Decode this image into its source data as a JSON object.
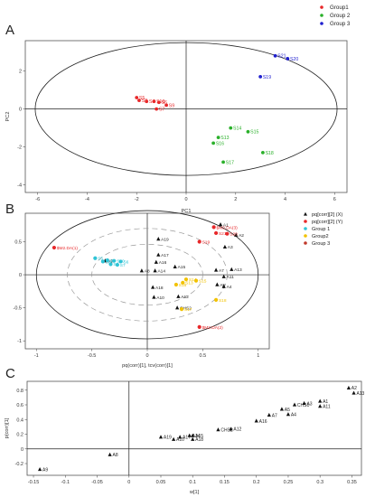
{
  "chart_data": [
    {
      "panel": "A",
      "type": "scatter",
      "title": "",
      "xlabel": "PC1",
      "ylabel": "PC2",
      "xlim": [
        -6.5,
        6.5
      ],
      "ylim": [
        -4.4,
        3.6
      ],
      "x_ticks": [
        -6,
        -4,
        -2,
        0,
        2,
        4,
        6
      ],
      "y_ticks": [
        -4,
        -2,
        0,
        2
      ],
      "legend_position": "top-right",
      "ellipse": {
        "center": [
          0,
          0
        ],
        "rx": 6.1,
        "ry": 3.5
      },
      "series": [
        {
          "name": "Group1",
          "color": "#e8282a",
          "points": [
            {
              "x": -2.0,
              "y": 0.6,
              "label": "S5"
            },
            {
              "x": -1.9,
              "y": 0.45,
              "label": "S8"
            },
            {
              "x": -1.6,
              "y": 0.4,
              "label": "S4"
            },
            {
              "x": -1.3,
              "y": 0.4,
              "label": "S10"
            },
            {
              "x": -1.1,
              "y": 0.35,
              "label": "S6"
            },
            {
              "x": -0.8,
              "y": 0.2,
              "label": "S9"
            },
            {
              "x": -1.2,
              "y": 0.0,
              "label": "S7"
            }
          ]
        },
        {
          "name": "Group 2",
          "color": "#2ab02a",
          "points": [
            {
              "x": 1.8,
              "y": -1.0,
              "label": "S14"
            },
            {
              "x": 2.5,
              "y": -1.2,
              "label": "S15"
            },
            {
              "x": 1.3,
              "y": -1.5,
              "label": "S13"
            },
            {
              "x": 1.1,
              "y": -1.8,
              "label": "S16"
            },
            {
              "x": 3.1,
              "y": -2.3,
              "label": "S18"
            },
            {
              "x": 1.5,
              "y": -2.8,
              "label": "S17"
            }
          ]
        },
        {
          "name": "Group 3",
          "color": "#1f1fcf",
          "points": [
            {
              "x": 3.6,
              "y": 2.8,
              "label": "S21"
            },
            {
              "x": 4.1,
              "y": 2.65,
              "label": "S20"
            },
            {
              "x": 3.0,
              "y": 1.7,
              "label": "S19"
            }
          ]
        }
      ]
    },
    {
      "panel": "B",
      "type": "scatter",
      "title": "",
      "xlabel": "pq(corr)[1], tcv(corr)[1]",
      "ylabel": "",
      "xlim": [
        -1.1,
        1.1
      ],
      "ylim": [
        -1.12,
        0.93
      ],
      "x_ticks": [
        -1,
        -0.5,
        0,
        0.5,
        1
      ],
      "y_ticks": [
        -1,
        -0.5,
        0,
        0.5
      ],
      "legend_position": "right",
      "legend": [
        {
          "label": "pq[corr][2] (X)",
          "color": "#111111"
        },
        {
          "label": "pq[corr][2] (Y)",
          "color": "#e8282a"
        },
        {
          "label": "Group 1",
          "color": "#2fc4d6"
        },
        {
          "label": "Group2",
          "color": "#f2c200"
        },
        {
          "label": "Group 3",
          "color": "#c0392b"
        }
      ],
      "ellipses": [
        {
          "center": [
            0,
            0
          ],
          "rx": 1.0,
          "ry": 0.97
        },
        {
          "center": [
            0,
            0
          ],
          "rx": 0.72,
          "ry": 0.7
        },
        {
          "center": [
            0,
            0
          ],
          "rx": 0.5,
          "ry": 0.46
        }
      ],
      "series": [
        {
          "name": "pq[corr][2] (X)",
          "color": "#111111",
          "points": [
            {
              "x": 0.66,
              "y": 0.76,
              "label": "A1"
            },
            {
              "x": 0.8,
              "y": 0.6,
              "label": "A2"
            },
            {
              "x": 0.7,
              "y": 0.42,
              "label": "A3"
            },
            {
              "x": 0.62,
              "y": 0.07,
              "label": "A7"
            },
            {
              "x": 0.69,
              "y": -0.03,
              "label": "A11"
            },
            {
              "x": 0.76,
              "y": 0.08,
              "label": "A13"
            },
            {
              "x": 0.63,
              "y": -0.15,
              "label": "A5"
            },
            {
              "x": 0.69,
              "y": -0.18,
              "label": "A4"
            },
            {
              "x": 0.1,
              "y": 0.54,
              "label": "A19"
            },
            {
              "x": 0.1,
              "y": 0.3,
              "label": "A17"
            },
            {
              "x": 0.08,
              "y": 0.19,
              "label": "A16"
            },
            {
              "x": 0.25,
              "y": 0.12,
              "label": "A15"
            },
            {
              "x": 0.07,
              "y": 0.06,
              "label": "A14"
            },
            {
              "x": 0.05,
              "y": -0.19,
              "label": "A18"
            },
            {
              "x": 0.28,
              "y": -0.33,
              "label": "A12"
            },
            {
              "x": 0.06,
              "y": -0.34,
              "label": "A10"
            },
            {
              "x": -0.05,
              "y": 0.06,
              "label": "A8"
            },
            {
              "x": -0.38,
              "y": 0.21,
              "label": "A9"
            },
            {
              "x": 0.27,
              "y": -0.5,
              "label": "CHS2"
            }
          ]
        },
        {
          "name": "pq[corr][2] (Y)",
          "color": "#e8282a",
          "points": [
            {
              "x": -0.84,
              "y": 0.41,
              "label": "$M2.DA(1)"
            },
            {
              "x": 0.6,
              "y": 0.72,
              "label": "$M2.DA(3)"
            },
            {
              "x": 0.62,
              "y": 0.63,
              "label": "S21"
            },
            {
              "x": 0.72,
              "y": 0.62,
              "label": "S20"
            },
            {
              "x": 0.47,
              "y": 0.5,
              "label": "S19"
            },
            {
              "x": 0.47,
              "y": -0.79,
              "label": "$M2.DA(2)"
            }
          ]
        },
        {
          "name": "Group 1",
          "color": "#2fc4d6",
          "points": [
            {
              "x": -0.47,
              "y": 0.25,
              "label": "S5"
            },
            {
              "x": -0.4,
              "y": 0.2,
              "label": "S8"
            },
            {
              "x": -0.36,
              "y": 0.22,
              "label": "S4"
            },
            {
              "x": -0.3,
              "y": 0.21,
              "label": "S10"
            },
            {
              "x": -0.24,
              "y": 0.2,
              "label": "S6"
            },
            {
              "x": -0.33,
              "y": 0.16,
              "label": "S9"
            },
            {
              "x": -0.27,
              "y": 0.15,
              "label": "S7"
            }
          ]
        },
        {
          "name": "Group2",
          "color": "#f2c200",
          "points": [
            {
              "x": 0.35,
              "y": -0.07,
              "label": "S14"
            },
            {
              "x": 0.44,
              "y": -0.09,
              "label": "S15"
            },
            {
              "x": 0.32,
              "y": -0.12,
              "label": "S13"
            },
            {
              "x": 0.26,
              "y": -0.15,
              "label": "S16"
            },
            {
              "x": 0.62,
              "y": -0.38,
              "label": "S18"
            },
            {
              "x": 0.31,
              "y": -0.52,
              "label": "S17"
            }
          ]
        }
      ]
    },
    {
      "panel": "C",
      "type": "scatter",
      "title": "",
      "xlabel": "w[1]",
      "ylabel": "p(corr)[1]",
      "xlim": [
        -0.16,
        0.365
      ],
      "ylim": [
        -0.36,
        0.92
      ],
      "x_ticks": [
        -0.15,
        -0.1,
        -0.05,
        0,
        0.05,
        0.1,
        0.15,
        0.2,
        0.25,
        0.3,
        0.35
      ],
      "y_ticks": [
        -0.2,
        0,
        0.2,
        0.4,
        0.6,
        0.8
      ],
      "legend_position": "none",
      "series": [
        {
          "name": "",
          "color": "#111111",
          "points": [
            {
              "x": -0.14,
              "y": -0.28,
              "label": "A9"
            },
            {
              "x": -0.03,
              "y": -0.08,
              "label": "A8"
            },
            {
              "x": 0.05,
              "y": 0.16,
              "label": "A19"
            },
            {
              "x": 0.07,
              "y": 0.13,
              "label": "A10"
            },
            {
              "x": 0.08,
              "y": 0.16,
              "label": "A17"
            },
            {
              "x": 0.095,
              "y": 0.18,
              "label": "A14"
            },
            {
              "x": 0.1,
              "y": 0.18,
              "label": "A15"
            },
            {
              "x": 0.1,
              "y": 0.13,
              "label": "A18"
            },
            {
              "x": 0.14,
              "y": 0.26,
              "label": "CHS2"
            },
            {
              "x": 0.16,
              "y": 0.27,
              "label": "A12"
            },
            {
              "x": 0.2,
              "y": 0.38,
              "label": "A16"
            },
            {
              "x": 0.22,
              "y": 0.46,
              "label": "A7"
            },
            {
              "x": 0.24,
              "y": 0.54,
              "label": "A5"
            },
            {
              "x": 0.25,
              "y": 0.47,
              "label": "A4"
            },
            {
              "x": 0.26,
              "y": 0.6,
              "label": "CHS1"
            },
            {
              "x": 0.275,
              "y": 0.62,
              "label": "A3"
            },
            {
              "x": 0.3,
              "y": 0.65,
              "label": "A1"
            },
            {
              "x": 0.3,
              "y": 0.58,
              "label": "A11"
            },
            {
              "x": 0.345,
              "y": 0.83,
              "label": "A2"
            },
            {
              "x": 0.353,
              "y": 0.76,
              "label": "A13"
            }
          ]
        }
      ]
    }
  ]
}
